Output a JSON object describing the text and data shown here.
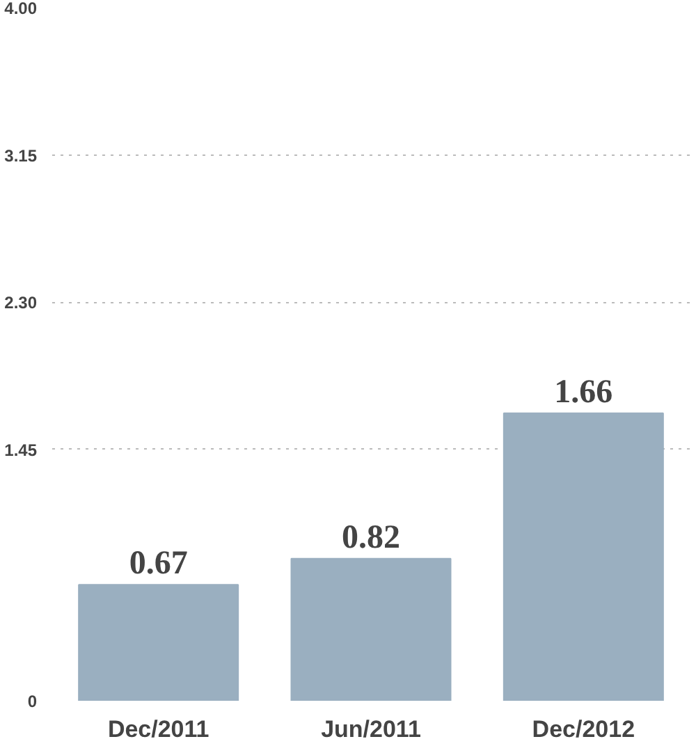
{
  "chart_data": {
    "type": "bar",
    "categories": [
      "Dec/2011",
      "Jun/2011",
      "Dec/2012"
    ],
    "values": [
      0.67,
      0.82,
      1.66
    ],
    "color": "#9aafc0",
    "data_labels": true,
    "ylim": [
      0,
      4
    ],
    "yticks": [
      0,
      {
        "value": 1.45,
        "label": "1.45"
      },
      {
        "value": 2.3,
        "label": "2.30"
      },
      {
        "value": 3.15,
        "label": "3.15"
      },
      {
        "value": 4,
        "label": "4.00"
      }
    ],
    "grid": "y"
  }
}
